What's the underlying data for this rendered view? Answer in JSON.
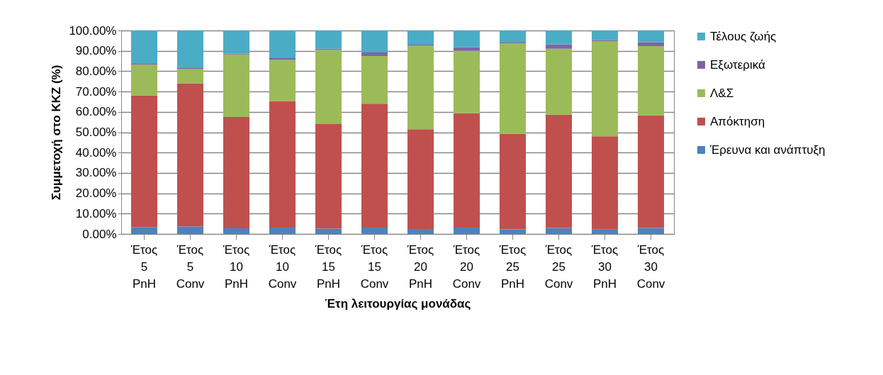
{
  "chart_data": {
    "type": "bar",
    "stacked": true,
    "xlabel": "Έτη λειτουργίας μονάδας",
    "ylabel": "Συμμετοχή στο ΚΚΖ (%)",
    "categories": [
      "Έτος 5 PnH",
      "Έτος 5 Conv",
      "Έτος 10 PnH",
      "Έτος 10 Conv",
      "Έτος 15 PnH",
      "Έτος 15 Conv",
      "Έτος 20 PnH",
      "Έτος 20 Conv",
      "Έτος 25 PnH",
      "Έτος 25 Conv",
      "Έτος 30 PnH",
      "Έτος 30 Conv"
    ],
    "series": [
      {
        "name": "Έρευνα και ανάπτυξη",
        "color": "#4f81bd",
        "values": [
          3.3,
          3.7,
          2.8,
          3.1,
          2.6,
          3.1,
          2.4,
          3.1,
          2.3,
          3.0,
          2.2,
          3.0
        ]
      },
      {
        "name": "Απόκτηση",
        "color": "#c0504d",
        "values": [
          64.7,
          70.3,
          54.7,
          62.2,
          51.4,
          60.9,
          49.1,
          56.2,
          46.9,
          55.6,
          45.8,
          55.3
        ]
      },
      {
        "name": "Λ&Σ",
        "color": "#9bbb59",
        "values": [
          15.2,
          7.0,
          30.7,
          20.2,
          36.5,
          23.5,
          41.0,
          30.7,
          44.4,
          32.4,
          46.8,
          34.0
        ]
      },
      {
        "name": "Εξωτερικά",
        "color": "#8064a2",
        "values": [
          0.4,
          0.8,
          0.5,
          0.9,
          0.5,
          1.7,
          0.5,
          1.8,
          0.5,
          2.2,
          0.5,
          1.9
        ]
      },
      {
        "name": "Τέλους ζωής",
        "color": "#4bacc6",
        "values": [
          16.4,
          18.2,
          11.3,
          13.6,
          9.0,
          10.8,
          7.0,
          8.2,
          5.9,
          6.8,
          4.7,
          5.8
        ]
      }
    ],
    "ylim": [
      0,
      100
    ],
    "yticks": [
      {
        "value": 0,
        "label": "0.00%"
      },
      {
        "value": 10,
        "label": "10.00%"
      },
      {
        "value": 20,
        "label": "20.00%"
      },
      {
        "value": 30,
        "label": "30.00%"
      },
      {
        "value": 40,
        "label": "40.00%"
      },
      {
        "value": 50,
        "label": "50.00%"
      },
      {
        "value": 60,
        "label": "60.00%"
      },
      {
        "value": 70,
        "label": "70.00%"
      },
      {
        "value": 80,
        "label": "80.00%"
      },
      {
        "value": 90,
        "label": "90.00%"
      },
      {
        "value": 100,
        "label": "100.00%"
      }
    ],
    "grid": true,
    "legend": "right"
  }
}
